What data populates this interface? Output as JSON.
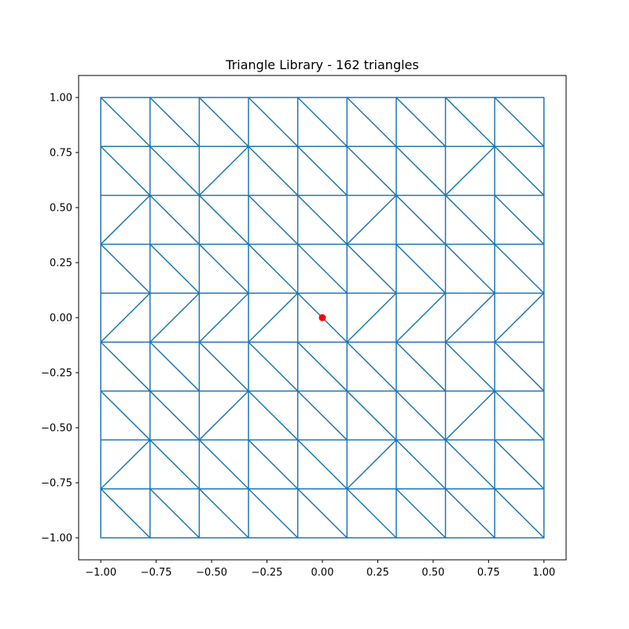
{
  "chart_data": {
    "type": "line",
    "title": "Triangle Library - 162 triangles",
    "xlabel": "",
    "ylabel": "",
    "xlim": [
      -1.1,
      1.1
    ],
    "ylim": [
      -1.1,
      1.1
    ],
    "grid": false,
    "mesh": {
      "divisions": 9,
      "min": -1.0,
      "max": 1.0,
      "diagonals_top_to_bottom": [
        [
          "\\",
          "\\",
          "\\",
          "\\",
          "\\",
          "\\",
          "\\",
          "\\",
          "\\"
        ],
        [
          "\\",
          "\\",
          "/",
          "\\",
          "\\",
          "\\",
          "\\",
          "/",
          "\\"
        ],
        [
          "/",
          "\\",
          "\\",
          "\\",
          "\\",
          "/",
          "\\",
          "\\",
          "\\"
        ],
        [
          "\\",
          "\\",
          "\\",
          "\\",
          "\\",
          "\\",
          "\\",
          "\\",
          "\\"
        ],
        [
          "/",
          "/",
          "/",
          "/",
          "\\",
          "/",
          "/",
          "/",
          "/"
        ],
        [
          "\\",
          "\\",
          "\\",
          "\\",
          "\\",
          "\\",
          "\\",
          "\\",
          "\\"
        ],
        [
          "\\",
          "\\",
          "/",
          "\\",
          "\\",
          "\\",
          "\\",
          "/",
          "\\"
        ],
        [
          "/",
          "\\",
          "\\",
          "\\",
          "\\",
          "/",
          "\\",
          "\\",
          "\\"
        ],
        [
          "\\",
          "\\",
          "\\",
          "\\",
          "\\",
          "\\",
          "\\",
          "\\",
          "\\"
        ]
      ],
      "line_color": "#1f77b4"
    },
    "marker": {
      "x": 0.0,
      "y": 0.0,
      "color": "#ff0000"
    },
    "x_ticks": [
      {
        "value": -1.0,
        "label": "−1.00"
      },
      {
        "value": -0.75,
        "label": "−0.75"
      },
      {
        "value": -0.5,
        "label": "−0.50"
      },
      {
        "value": -0.25,
        "label": "−0.25"
      },
      {
        "value": 0.0,
        "label": "0.00"
      },
      {
        "value": 0.25,
        "label": "0.25"
      },
      {
        "value": 0.5,
        "label": "0.50"
      },
      {
        "value": 0.75,
        "label": "0.75"
      },
      {
        "value": 1.0,
        "label": "1.00"
      }
    ],
    "y_ticks": [
      {
        "value": 1.0,
        "label": "1.00"
      },
      {
        "value": 0.75,
        "label": "0.75"
      },
      {
        "value": 0.5,
        "label": "0.50"
      },
      {
        "value": 0.25,
        "label": "0.25"
      },
      {
        "value": 0.0,
        "label": "0.00"
      },
      {
        "value": -0.25,
        "label": "−0.25"
      },
      {
        "value": -0.5,
        "label": "−0.50"
      },
      {
        "value": -0.75,
        "label": "−0.75"
      },
      {
        "value": -1.0,
        "label": "−1.00"
      }
    ]
  }
}
